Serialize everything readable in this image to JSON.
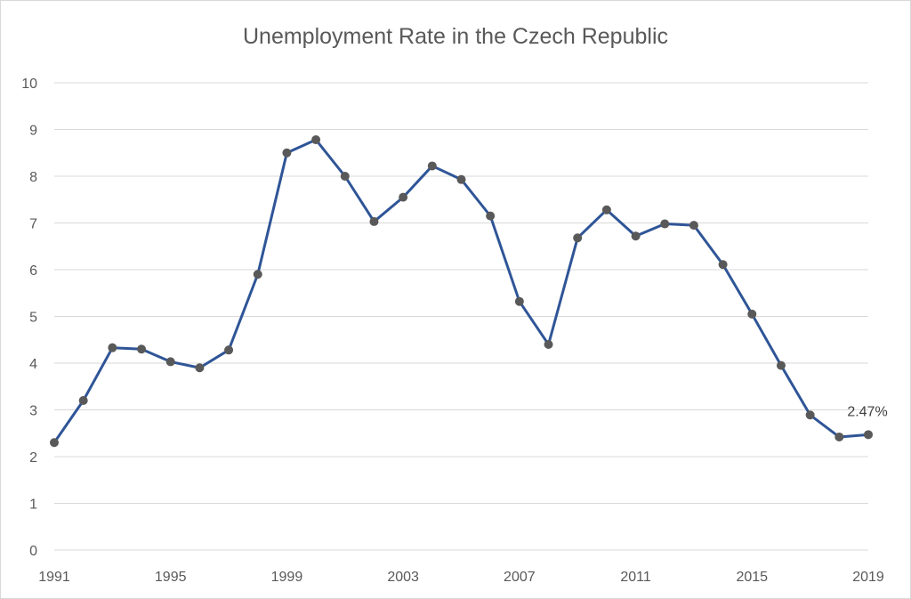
{
  "chart_data": {
    "type": "line",
    "title": "Unemployment Rate in the Czech Republic",
    "xlabel": "",
    "ylabel": "",
    "x": [
      1991,
      1992,
      1993,
      1994,
      1995,
      1996,
      1997,
      1998,
      1999,
      2000,
      2001,
      2002,
      2003,
      2004,
      2005,
      2006,
      2007,
      2008,
      2009,
      2010,
      2011,
      2012,
      2013,
      2014,
      2015,
      2016,
      2017,
      2018,
      2019
    ],
    "series": [
      {
        "values": [
          2.3,
          3.2,
          4.33,
          4.3,
          4.03,
          3.9,
          4.28,
          5.9,
          8.5,
          8.78,
          8.0,
          7.03,
          7.55,
          8.22,
          7.93,
          7.15,
          5.32,
          4.4,
          6.68,
          7.28,
          6.72,
          6.98,
          6.95,
          6.11,
          5.05,
          3.95,
          2.89,
          2.42,
          2.47
        ],
        "color": "#2F5597",
        "marker_color": "#595959"
      }
    ],
    "x_tick_labels": [
      "1991",
      "1995",
      "1999",
      "2003",
      "2007",
      "2011",
      "2015",
      "2019"
    ],
    "y_tick_labels": [
      "0",
      "1",
      "2",
      "3",
      "4",
      "5",
      "6",
      "7",
      "8",
      "9",
      "10"
    ],
    "ylim": [
      0,
      10
    ],
    "xlim": [
      1991,
      2019
    ],
    "grid": true,
    "grid_color": "#d9d9d9",
    "legend": "none",
    "annotations": [
      {
        "x": 2019,
        "y": 2.47,
        "text": "2.47%"
      }
    ]
  }
}
